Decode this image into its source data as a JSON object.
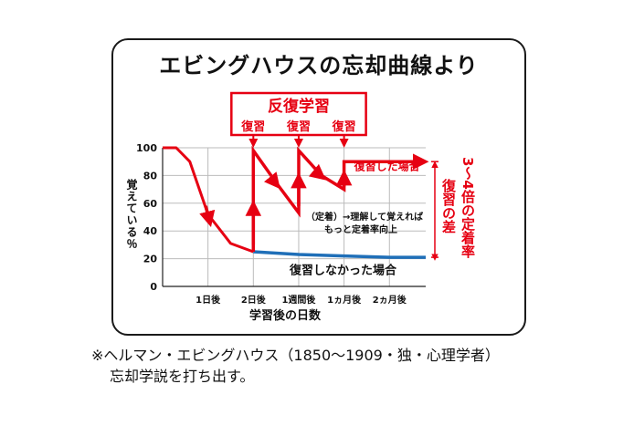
{
  "title": "エビングハウスの忘却曲線より",
  "footnote": {
    "line1": "※ヘルマン・エビングハウス（1850〜1909・独・心理学者）",
    "line2": "忘却学説を打ち出す。"
  },
  "colors": {
    "review": "#e60012",
    "no_review": "#1f6fb8",
    "text": "#111111",
    "grid": "#bbbbbb"
  },
  "chart_data": {
    "type": "line",
    "ylabel": "覚えている％",
    "xlabel": "学習後の日数",
    "ylim": [
      0,
      100
    ],
    "yticks": [
      "0",
      "20",
      "40",
      "60",
      "80",
      "100"
    ],
    "xticks": [
      "1日後",
      "2日後",
      "1週間後",
      "1ヵ月後",
      "2ヵ月後"
    ],
    "grid": true,
    "series": [
      {
        "name": "復習しなかった場合",
        "points": [
          [
            0,
            100
          ],
          [
            0.3,
            100
          ],
          [
            0.6,
            90
          ],
          [
            1,
            52
          ],
          [
            1.5,
            31
          ],
          [
            2,
            25
          ],
          [
            3,
            23
          ],
          [
            4,
            22
          ],
          [
            5,
            21
          ],
          [
            5.8,
            21
          ]
        ]
      },
      {
        "name": "復習した場合",
        "points": [
          [
            2,
            25
          ],
          [
            2,
            98
          ],
          [
            2.5,
            75
          ],
          [
            3,
            53
          ],
          [
            3,
            98
          ],
          [
            3.5,
            80
          ],
          [
            4,
            70
          ],
          [
            4,
            90
          ],
          [
            5.8,
            90
          ]
        ]
      }
    ],
    "annotations": {
      "box_title": "反復学習",
      "review_label": "復習",
      "note_line1": "（定着）→理解して覚えれば",
      "note_line2": "もっと定着率向上",
      "diff_label": "復習の差",
      "rate_label": "3〜4倍の定着率"
    }
  }
}
